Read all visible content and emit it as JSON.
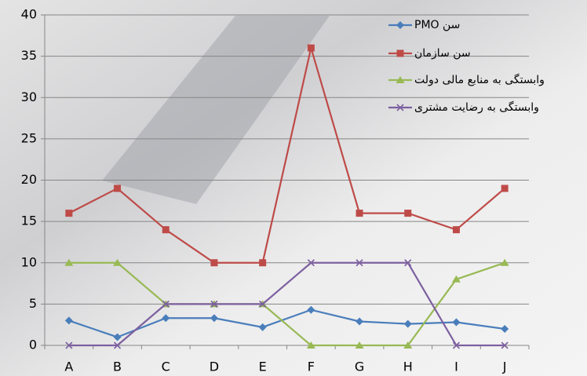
{
  "chart_data": {
    "type": "line",
    "categories": [
      "A",
      "B",
      "C",
      "D",
      "E",
      "F",
      "G",
      "H",
      "I",
      "J"
    ],
    "series": [
      {
        "name": "سن PMO",
        "color": "#4a7ebb",
        "marker": "diamond",
        "values": [
          3,
          1,
          3.3,
          3.3,
          2.2,
          4.3,
          2.9,
          2.6,
          2.8,
          2
        ]
      },
      {
        "name": "سن سازمان",
        "color": "#be4b48",
        "marker": "square",
        "values": [
          16,
          19,
          14,
          10,
          10,
          36,
          16,
          16,
          14,
          19
        ]
      },
      {
        "name": "وابستگی به منابع مالی دولت",
        "color": "#98b954",
        "marker": "triangle",
        "values": [
          10,
          10,
          5,
          5,
          5,
          0,
          0,
          0,
          8,
          10
        ]
      },
      {
        "name": "وابستگی به رضایت مشتری",
        "color": "#7d60a0",
        "marker": "x",
        "values": [
          0,
          0,
          5,
          5,
          5,
          10,
          10,
          10,
          0,
          0
        ]
      }
    ],
    "ylim": [
      0,
      40
    ],
    "yticks": [
      0,
      5,
      10,
      15,
      20,
      25,
      30,
      35,
      40
    ],
    "grid": true,
    "legend": "top-right"
  }
}
